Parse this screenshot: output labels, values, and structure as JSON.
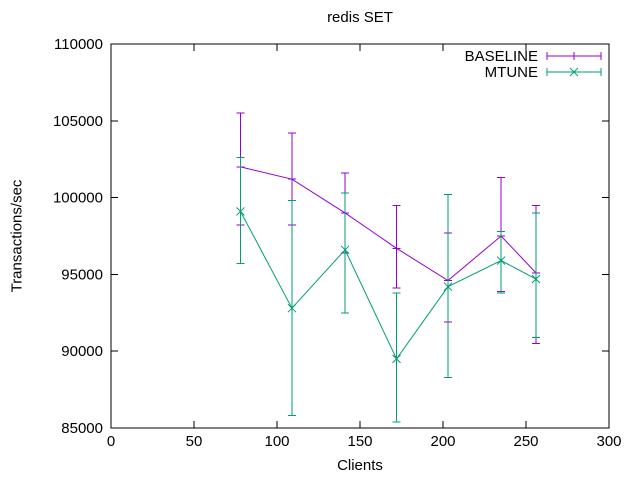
{
  "window": {
    "background": "#ffffff"
  },
  "chart_data": {
    "type": "line",
    "title": "redis SET",
    "xlabel": "Clients",
    "ylabel": "Transactions/sec",
    "xlim": [
      0,
      300
    ],
    "ylim": [
      85000,
      110000
    ],
    "xticks": [
      0,
      50,
      100,
      150,
      200,
      250,
      300
    ],
    "yticks": [
      85000,
      90000,
      95000,
      100000,
      105000,
      110000
    ],
    "grid": false,
    "legend_position": "top-right-inside",
    "axis_color": "#000000",
    "text_color": "#000000",
    "x": [
      78,
      109,
      141,
      172,
      203,
      235,
      256
    ],
    "series": [
      {
        "name": "BASELINE",
        "color": "#9400d3",
        "marker": "plus",
        "values": [
          102000,
          101200,
          99000,
          96700,
          94600,
          97500,
          95100
        ],
        "err_low": [
          98200,
          98200,
          96400,
          94100,
          91900,
          93900,
          90500
        ],
        "err_high": [
          105500,
          104200,
          101600,
          99500,
          97700,
          101300,
          99500
        ]
      },
      {
        "name": "MTUNE",
        "color": "#009e73",
        "marker": "cross",
        "values": [
          99100,
          92800,
          96600,
          89500,
          94200,
          95900,
          94700
        ],
        "err_low": [
          95700,
          85800,
          92500,
          85400,
          88300,
          93800,
          90900
        ],
        "err_high": [
          102600,
          99800,
          100300,
          93800,
          100200,
          97800,
          99000
        ]
      }
    ]
  }
}
